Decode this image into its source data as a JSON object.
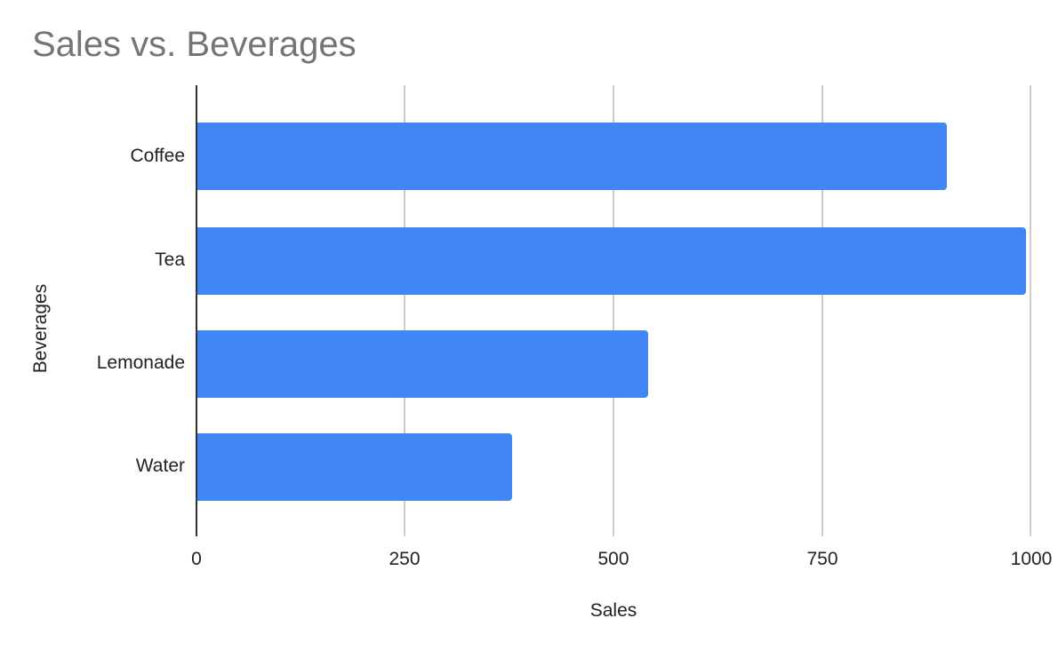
{
  "chart_data": {
    "type": "bar",
    "orientation": "horizontal",
    "title": "Sales vs. Beverages",
    "xlabel": "Sales",
    "ylabel": "Beverages",
    "categories": [
      "Coffee",
      "Tea",
      "Lemonade",
      "Water"
    ],
    "values": [
      900,
      995,
      542,
      378
    ],
    "xlim": [
      0,
      1000
    ],
    "x_ticks": [
      "0",
      "250",
      "500",
      "750",
      "1000"
    ],
    "grid": true,
    "legend": "none",
    "bar_color": "#4285f4"
  }
}
